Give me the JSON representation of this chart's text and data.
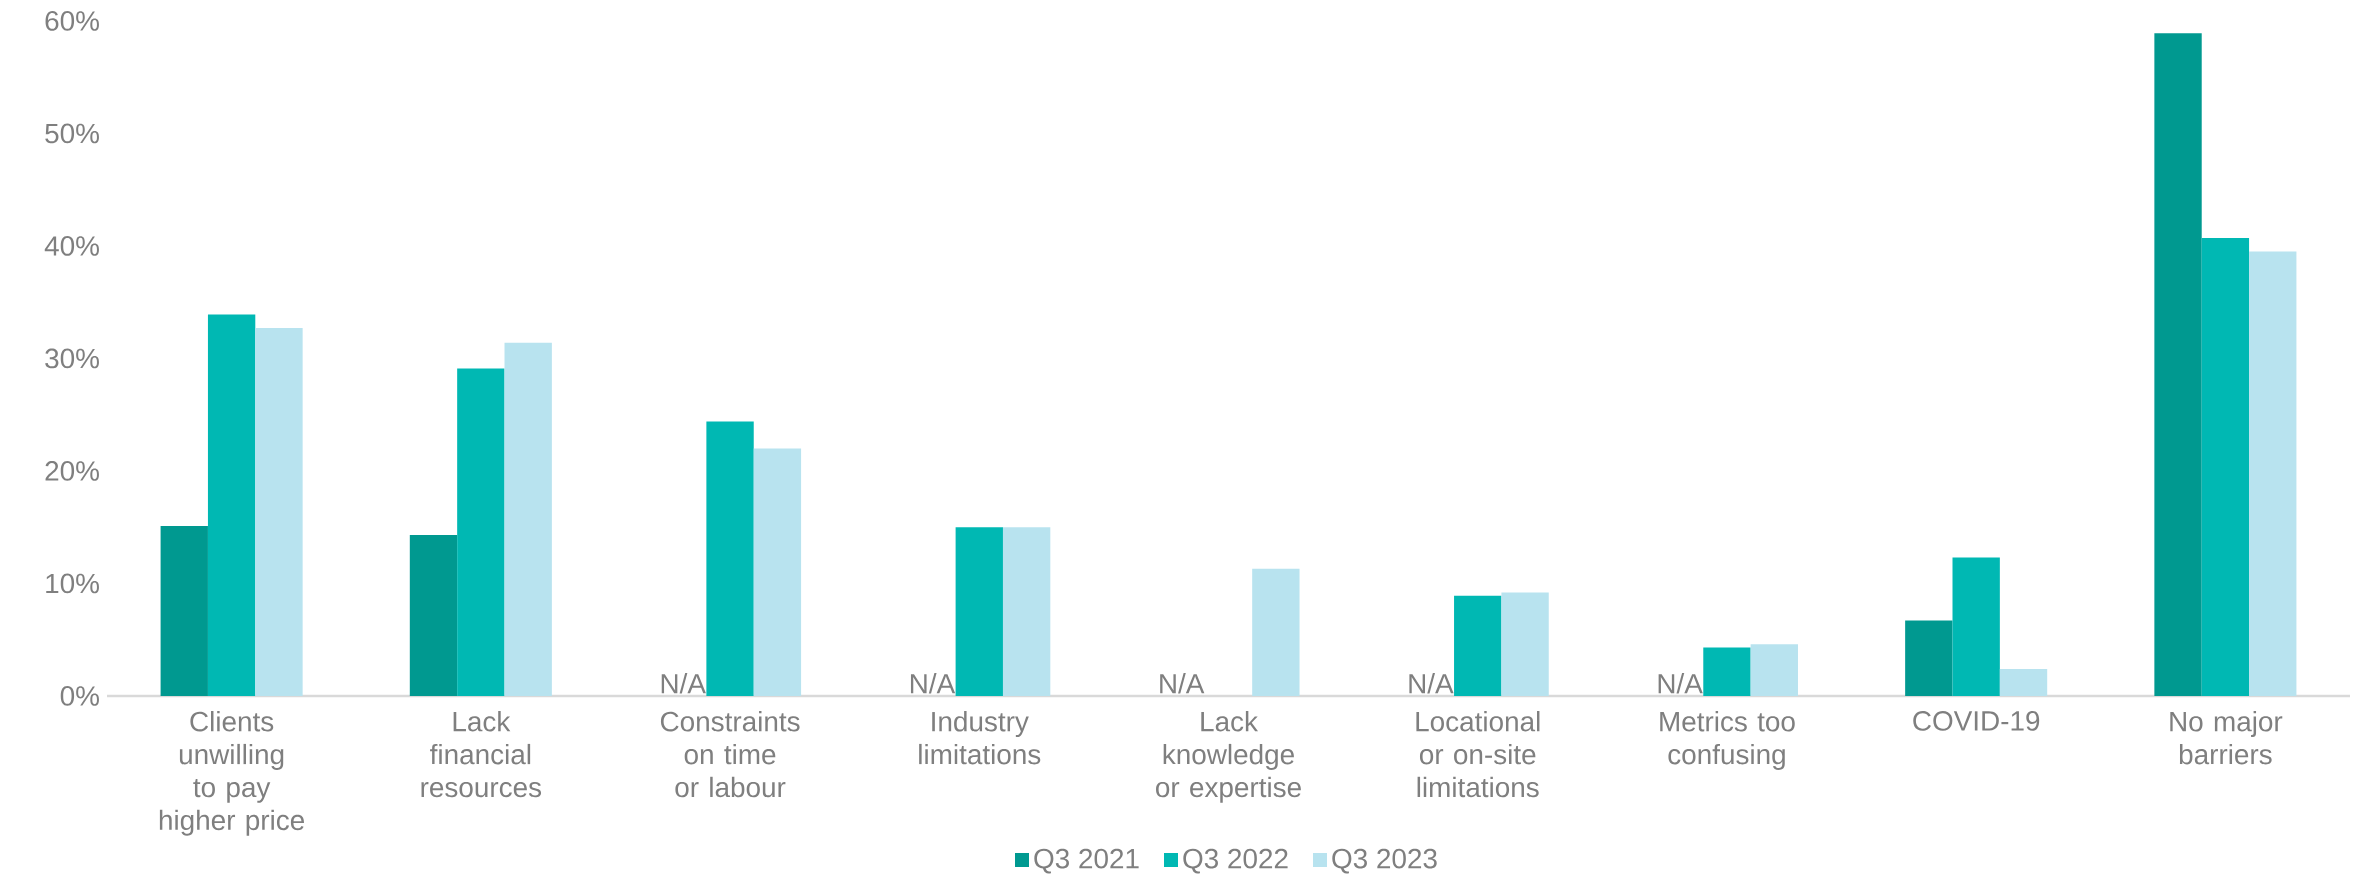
{
  "chart_data": {
    "type": "bar",
    "categories": [
      "Clients unwilling to pay higher price",
      "Lack financial resources",
      "Constraints on time or labour",
      "Industry limitations",
      "Lack knowledge or expertise",
      "Locational or on-site limitations",
      "Metrics too confusing",
      "COVID-19",
      "No major barriers"
    ],
    "series": [
      {
        "name": "Q3 2021",
        "color": "#009990",
        "values": [
          15.1,
          14.3,
          null,
          null,
          null,
          null,
          null,
          6.7,
          58.9
        ]
      },
      {
        "name": "Q3 2022",
        "color": "#00b8b3",
        "values": [
          33.9,
          29.1,
          24.4,
          15.0,
          null,
          8.9,
          4.3,
          12.3,
          40.7
        ]
      },
      {
        "name": "Q3 2023",
        "color": "#b8e3ef",
        "values": [
          32.7,
          31.4,
          22.0,
          15.0,
          11.3,
          9.2,
          4.6,
          2.4,
          39.5
        ]
      }
    ],
    "ylim": [
      0,
      60
    ],
    "yticks": [
      {
        "value": 0,
        "label": "0%"
      },
      {
        "value": 10,
        "label": "10%"
      },
      {
        "value": 20,
        "label": "20%"
      },
      {
        "value": 30,
        "label": "30%"
      },
      {
        "value": 40,
        "label": "40%"
      },
      {
        "value": 50,
        "label": "50%"
      },
      {
        "value": 60,
        "label": "60%"
      }
    ],
    "annotations": [
      "N/A",
      "N/A",
      "N/A",
      "N/A",
      "N/A"
    ],
    "legend": "bottom"
  }
}
